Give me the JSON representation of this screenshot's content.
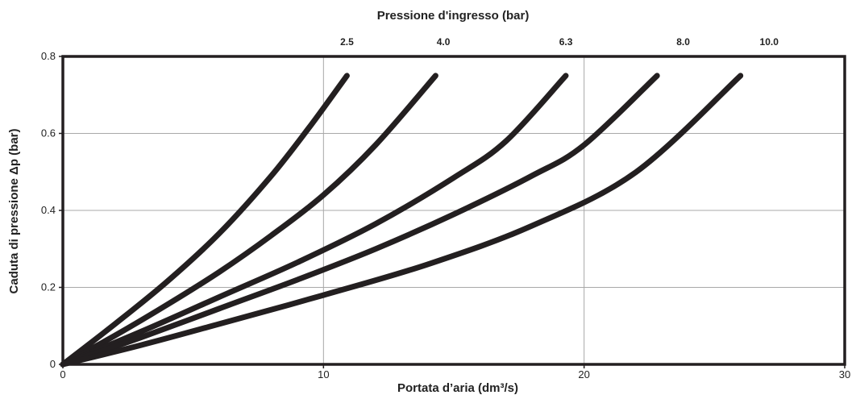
{
  "chart_data": {
    "type": "line",
    "title": "",
    "top_axis_title": "Pressione d'ingresso (bar)",
    "xlabel": "Portata d’aria (dm³/s)",
    "ylabel": "Caduta di pressione Δp (bar)",
    "xlim": [
      0,
      30
    ],
    "ylim": [
      0,
      0.8
    ],
    "x_ticks": [
      0,
      10,
      20,
      30
    ],
    "x_tick_labels": [
      "0",
      "10",
      "20",
      "30"
    ],
    "y_ticks": [
      0,
      0.2,
      0.4,
      0.6,
      0.8
    ],
    "y_tick_labels": [
      "0",
      "0.2",
      "0.4",
      "0.6",
      "0.8"
    ],
    "grid": true,
    "series": [
      {
        "top_label": "2.5",
        "x": [
          0,
          2,
          4,
          6,
          8,
          9.5,
          10.9
        ],
        "y": [
          0,
          0.105,
          0.215,
          0.34,
          0.49,
          0.62,
          0.75
        ]
      },
      {
        "top_label": "4.0",
        "x": [
          0,
          2,
          4,
          6,
          8,
          10,
          12,
          14.3
        ],
        "y": [
          0,
          0.075,
          0.155,
          0.24,
          0.335,
          0.44,
          0.57,
          0.75
        ]
      },
      {
        "top_label": "6.3",
        "x": [
          0,
          3,
          6,
          9,
          12,
          15,
          17,
          19.3
        ],
        "y": [
          0,
          0.085,
          0.175,
          0.265,
          0.365,
          0.485,
          0.58,
          0.75
        ]
      },
      {
        "top_label": "8.0",
        "x": [
          0,
          3,
          6,
          9,
          12,
          15,
          18,
          20,
          22.8
        ],
        "y": [
          0,
          0.07,
          0.145,
          0.22,
          0.3,
          0.39,
          0.49,
          0.57,
          0.75
        ]
      },
      {
        "top_label": "10.0",
        "x": [
          0,
          3,
          6,
          10,
          14,
          18,
          22,
          26
        ],
        "y": [
          0,
          0.05,
          0.105,
          0.18,
          0.26,
          0.36,
          0.5,
          0.75
        ]
      }
    ],
    "top_label_x": [
      10.9,
      14.6,
      19.3,
      23.8,
      27.1
    ]
  }
}
